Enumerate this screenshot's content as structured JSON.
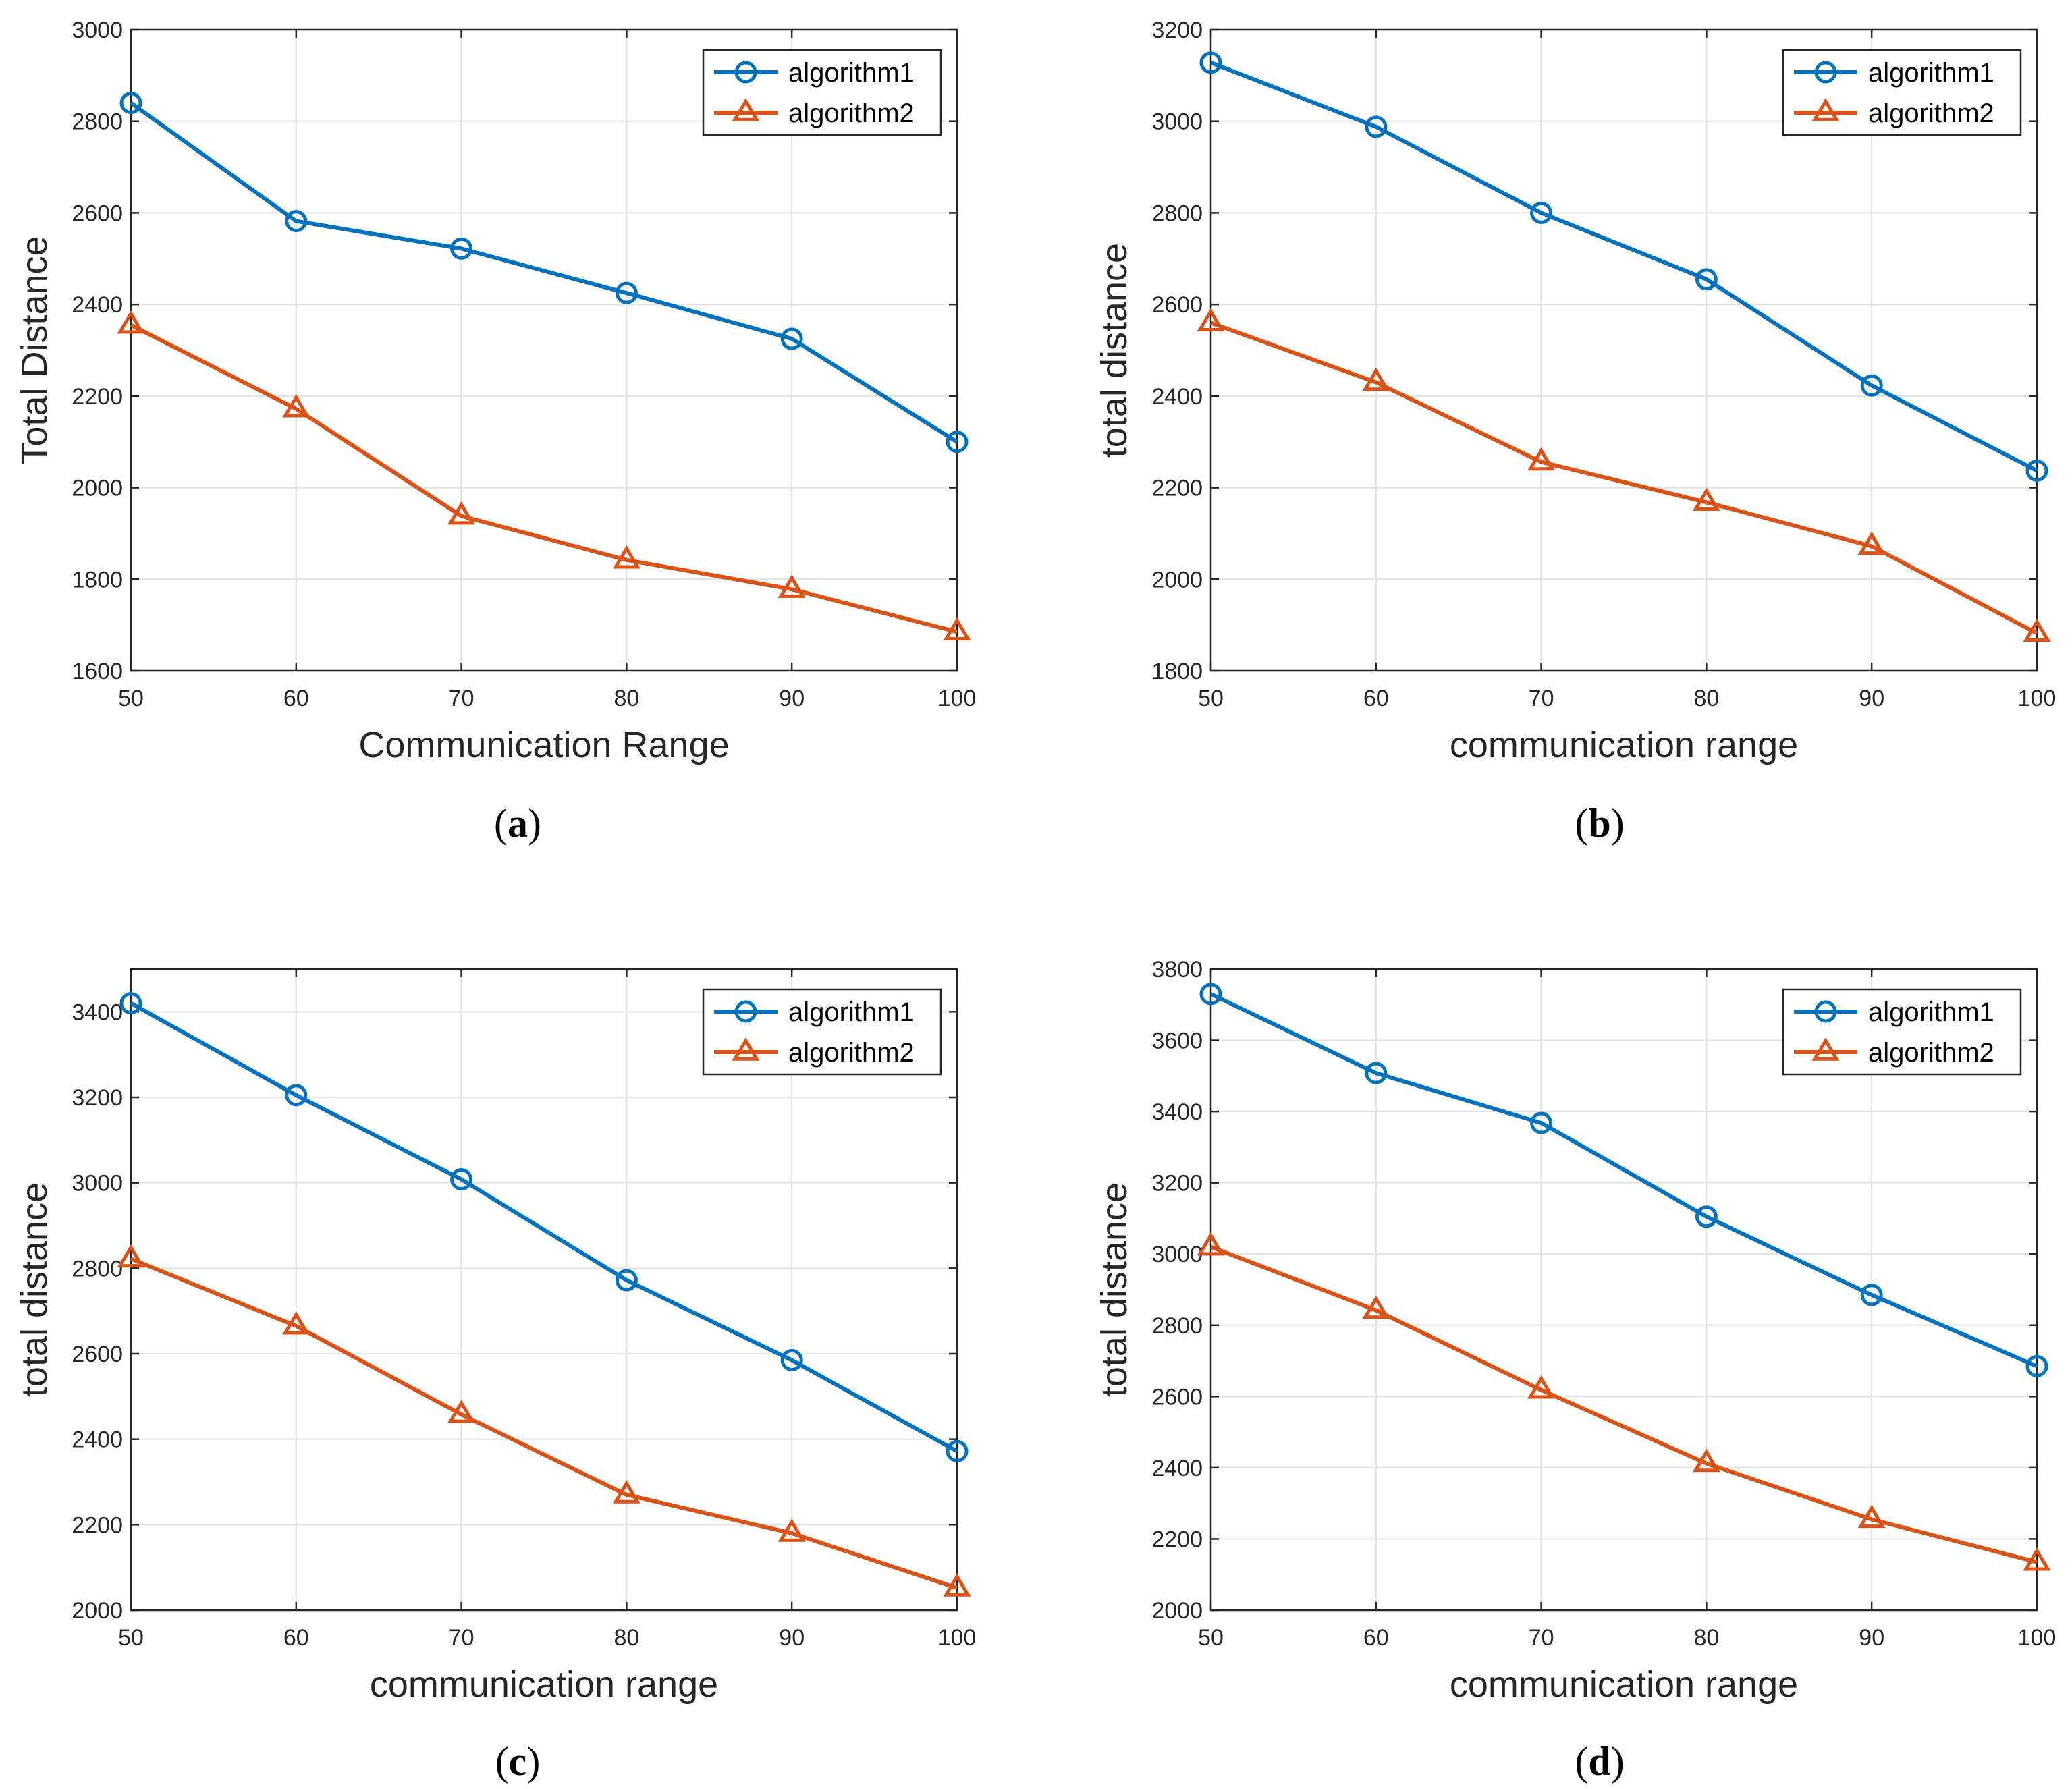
{
  "colors": {
    "algorithm1": "#0072BD",
    "algorithm2": "#D95319"
  },
  "chart_data": [
    {
      "type": "line",
      "panel": "a",
      "xlabel": "Communication Range",
      "ylabel": "Total Distance",
      "xlim": [
        50,
        100
      ],
      "ylim": [
        1600,
        3000
      ],
      "xticks": [
        50,
        60,
        70,
        80,
        90,
        100
      ],
      "yticks": [
        1600,
        1800,
        2000,
        2200,
        2400,
        2600,
        2800,
        3000
      ],
      "grid": true,
      "legend": "top-right",
      "x": [
        50,
        60,
        70,
        80,
        90,
        100
      ],
      "series": [
        {
          "name": "algorithm1",
          "marker": "circle",
          "color": "#0072BD",
          "values": [
            2840,
            2582,
            2522,
            2425,
            2325,
            2100
          ]
        },
        {
          "name": "algorithm2",
          "marker": "triangle",
          "color": "#D95319",
          "values": [
            2355,
            2172,
            1938,
            1842,
            1778,
            1685
          ]
        }
      ]
    },
    {
      "type": "line",
      "panel": "b",
      "xlabel": "communication range",
      "ylabel": "total distance",
      "xlim": [
        50,
        100
      ],
      "ylim": [
        1800,
        3200
      ],
      "xticks": [
        50,
        60,
        70,
        80,
        90,
        100
      ],
      "yticks": [
        1800,
        2000,
        2200,
        2400,
        2600,
        2800,
        3000,
        3200
      ],
      "grid": true,
      "legend": "top-right",
      "x": [
        50,
        60,
        70,
        80,
        90,
        100
      ],
      "series": [
        {
          "name": "algorithm1",
          "marker": "circle",
          "color": "#0072BD",
          "values": [
            3128,
            2988,
            2800,
            2655,
            2423,
            2237
          ]
        },
        {
          "name": "algorithm2",
          "marker": "triangle",
          "color": "#D95319",
          "values": [
            2560,
            2430,
            2256,
            2168,
            2072,
            1882
          ]
        }
      ]
    },
    {
      "type": "line",
      "panel": "c",
      "xlabel": "communication range",
      "ylabel": "total distance",
      "xlim": [
        50,
        100
      ],
      "ylim": [
        2000,
        3500
      ],
      "xticks": [
        50,
        60,
        70,
        80,
        90,
        100
      ],
      "yticks": [
        2000,
        2200,
        2400,
        2600,
        2800,
        3000,
        3200,
        3400
      ],
      "grid": true,
      "legend": "top-right",
      "x": [
        50,
        60,
        70,
        80,
        90,
        100
      ],
      "series": [
        {
          "name": "algorithm1",
          "marker": "circle",
          "color": "#0072BD",
          "values": [
            3420,
            3205,
            3008,
            2772,
            2585,
            2372
          ]
        },
        {
          "name": "algorithm2",
          "marker": "triangle",
          "color": "#D95319",
          "values": [
            2822,
            2665,
            2458,
            2270,
            2180,
            2052
          ]
        }
      ]
    },
    {
      "type": "line",
      "panel": "d",
      "xlabel": "communication range",
      "ylabel": "total distance",
      "xlim": [
        50,
        100
      ],
      "ylim": [
        2000,
        3800
      ],
      "xticks": [
        50,
        60,
        70,
        80,
        90,
        100
      ],
      "yticks": [
        2000,
        2200,
        2400,
        2600,
        2800,
        3000,
        3200,
        3400,
        3600,
        3800
      ],
      "grid": true,
      "legend": "top-right",
      "x": [
        50,
        60,
        70,
        80,
        90,
        100
      ],
      "series": [
        {
          "name": "algorithm1",
          "marker": "circle",
          "color": "#0072BD",
          "values": [
            3730,
            3508,
            3368,
            3105,
            2885,
            2685
          ]
        },
        {
          "name": "algorithm2",
          "marker": "triangle",
          "color": "#D95319",
          "values": [
            3020,
            2842,
            2618,
            2412,
            2255,
            2135
          ]
        }
      ]
    }
  ],
  "panel_labels": [
    {
      "open": "(",
      "letter": "a",
      "close": ")"
    },
    {
      "open": "(",
      "letter": "b",
      "close": ")"
    },
    {
      "open": "(",
      "letter": "c",
      "close": ")"
    },
    {
      "open": "(",
      "letter": "d",
      "close": ")"
    }
  ]
}
